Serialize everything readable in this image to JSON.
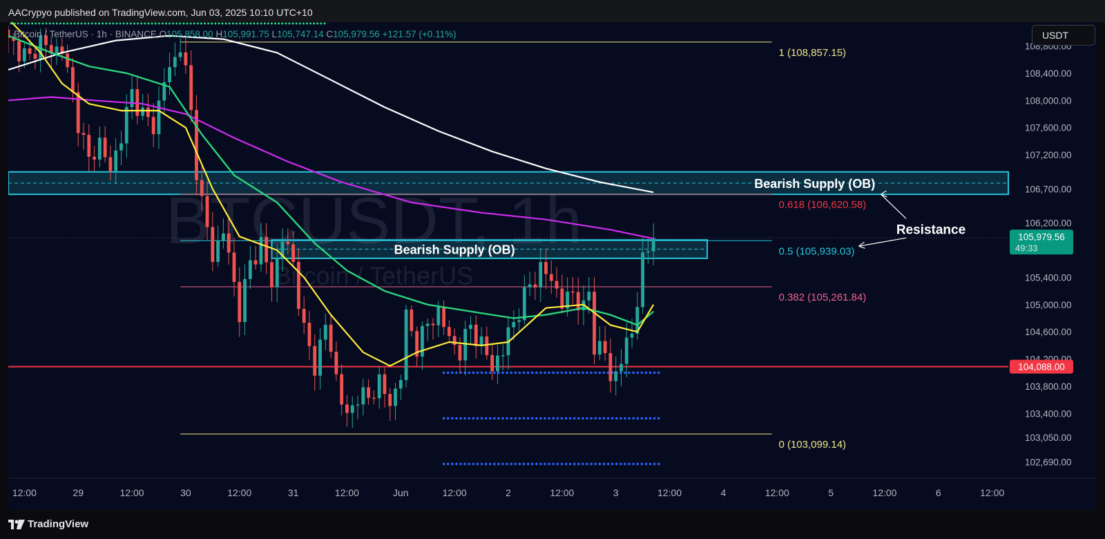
{
  "header": {
    "publisher": "AACrypyo published on TradingView.com, Jun 03, 2025 10:10 UTC+10"
  },
  "legend": {
    "pair": "Bitcoin / TetherUS · 1h · BINANCE",
    "open_label": "O",
    "open": "105,858.00",
    "high_label": "H",
    "high": "105,991.75",
    "low_label": "L",
    "low": "105,747.14",
    "close_label": "C",
    "close": "105,979.56",
    "change": "+121.57 (+0.11%)"
  },
  "currency_button": "USDT",
  "footer": {
    "brand": "TradingView"
  },
  "colors": {
    "background": "#070b1f",
    "up": "#26a69a",
    "down": "#ef5350",
    "ema_yellow": "#ffeb3b",
    "ema_green": "#2bd47d",
    "ema_magenta": "#d12bf0",
    "ema_white": "#ffffff",
    "ob_cyan": "#26c6da",
    "support_red": "#f23645",
    "fib_yellow": "#f0e68c",
    "fib_618": "#f23645",
    "fib_382": "#f06292",
    "dots_blue": "#2962ff"
  },
  "chart_data": {
    "type": "candlestick",
    "symbol": "BTCUSDT, 1h",
    "watermark_symbol": "BTCUSDT, 1h",
    "watermark_name": "Bitcoin / TetherUS",
    "y_axis": {
      "ylim": [
        102450,
        109150
      ],
      "ticks": [
        {
          "v": 108800,
          "label": "108,800.00"
        },
        {
          "v": 108400,
          "label": "108,400.00"
        },
        {
          "v": 108000,
          "label": "108,000.00"
        },
        {
          "v": 107600,
          "label": "107,600.00"
        },
        {
          "v": 107200,
          "label": "107,200.00"
        },
        {
          "v": 106700,
          "label": "106,700.00"
        },
        {
          "v": 106200,
          "label": "106,200.00"
        },
        {
          "v": 105400,
          "label": "105,400.00"
        },
        {
          "v": 105000,
          "label": "105,000.00"
        },
        {
          "v": 104600,
          "label": "104,600.00"
        },
        {
          "v": 104200,
          "label": "104,200.00"
        },
        {
          "v": 103800,
          "label": "103,800.00"
        },
        {
          "v": 103400,
          "label": "103,400.00"
        },
        {
          "v": 103050,
          "label": "103,050.00"
        },
        {
          "v": 102690,
          "label": "102,690.00"
        }
      ]
    },
    "x_axis": {
      "index_range": [
        0,
        186
      ],
      "ticks": [
        {
          "i": 3,
          "label": "12:00"
        },
        {
          "i": 13,
          "label": "29"
        },
        {
          "i": 23,
          "label": "12:00"
        },
        {
          "i": 33,
          "label": "30"
        },
        {
          "i": 43,
          "label": "12:00"
        },
        {
          "i": 53,
          "label": "31"
        },
        {
          "i": 63,
          "label": "12:00"
        },
        {
          "i": 73,
          "label": "Jun"
        },
        {
          "i": 83,
          "label": "12:00"
        },
        {
          "i": 93,
          "label": "2"
        },
        {
          "i": 103,
          "label": "12:00"
        },
        {
          "i": 113,
          "label": "3"
        },
        {
          "i": 123,
          "label": "12:00"
        },
        {
          "i": 133,
          "label": "4"
        },
        {
          "i": 143,
          "label": "12:00"
        },
        {
          "i": 153,
          "label": "5"
        },
        {
          "i": 163,
          "label": "12:00"
        },
        {
          "i": 173,
          "label": "6"
        },
        {
          "i": 183,
          "label": "12:00"
        }
      ]
    },
    "anchors": [
      {
        "i": 0,
        "c": 108850
      },
      {
        "i": 2,
        "c": 108750
      },
      {
        "i": 4,
        "c": 108600
      },
      {
        "i": 6,
        "c": 108900
      },
      {
        "i": 8,
        "c": 108700
      },
      {
        "i": 10,
        "c": 108800
      },
      {
        "i": 11,
        "c": 108400
      },
      {
        "i": 13,
        "c": 107700
      },
      {
        "i": 15,
        "c": 107100
      },
      {
        "i": 17,
        "c": 107400
      },
      {
        "i": 19,
        "c": 106950
      },
      {
        "i": 21,
        "c": 107500
      },
      {
        "i": 23,
        "c": 108100
      },
      {
        "i": 25,
        "c": 107800
      },
      {
        "i": 27,
        "c": 107600
      },
      {
        "i": 29,
        "c": 108300
      },
      {
        "i": 31,
        "c": 108600
      },
      {
        "i": 32,
        "c": 108850
      },
      {
        "i": 33,
        "c": 108400
      },
      {
        "i": 34,
        "c": 107800
      },
      {
        "i": 35,
        "c": 107000
      },
      {
        "i": 36,
        "c": 106500
      },
      {
        "i": 38,
        "c": 105700
      },
      {
        "i": 40,
        "c": 106100
      },
      {
        "i": 42,
        "c": 105300
      },
      {
        "i": 43,
        "c": 104900
      },
      {
        "i": 45,
        "c": 105600
      },
      {
        "i": 47,
        "c": 105900
      },
      {
        "i": 49,
        "c": 105300
      },
      {
        "i": 51,
        "c": 106000
      },
      {
        "i": 53,
        "c": 105600
      },
      {
        "i": 55,
        "c": 104600
      },
      {
        "i": 57,
        "c": 104100
      },
      {
        "i": 59,
        "c": 104700
      },
      {
        "i": 61,
        "c": 103950
      },
      {
        "i": 63,
        "c": 103300
      },
      {
        "i": 65,
        "c": 103700
      },
      {
        "i": 67,
        "c": 103600
      },
      {
        "i": 69,
        "c": 103900
      },
      {
        "i": 71,
        "c": 103500
      },
      {
        "i": 73,
        "c": 104000
      },
      {
        "i": 74,
        "c": 104800
      },
      {
        "i": 76,
        "c": 104400
      },
      {
        "i": 78,
        "c": 104700
      },
      {
        "i": 80,
        "c": 104900
      },
      {
        "i": 82,
        "c": 104500
      },
      {
        "i": 84,
        "c": 104300
      },
      {
        "i": 86,
        "c": 104700
      },
      {
        "i": 88,
        "c": 104400
      },
      {
        "i": 90,
        "c": 104100
      },
      {
        "i": 92,
        "c": 104300
      },
      {
        "i": 93,
        "c": 104600
      },
      {
        "i": 95,
        "c": 104900
      },
      {
        "i": 97,
        "c": 105300
      },
      {
        "i": 99,
        "c": 105500
      },
      {
        "i": 101,
        "c": 105400
      },
      {
        "i": 103,
        "c": 105000
      },
      {
        "i": 105,
        "c": 105200
      },
      {
        "i": 107,
        "c": 104900
      },
      {
        "i": 108,
        "c": 105200
      },
      {
        "i": 109,
        "c": 104400
      },
      {
        "i": 111,
        "c": 104300
      },
      {
        "i": 112,
        "c": 103900
      },
      {
        "i": 113,
        "c": 104000
      },
      {
        "i": 115,
        "c": 104400
      },
      {
        "i": 116,
        "c": 104600
      },
      {
        "i": 117,
        "c": 105100
      },
      {
        "i": 118,
        "c": 105600
      },
      {
        "i": 119,
        "c": 105800
      },
      {
        "i": 120,
        "c": 105980
      }
    ],
    "candle_count": 121,
    "ema_yellow": [
      {
        "i": 0,
        "v": 109200
      },
      {
        "i": 6,
        "v": 108700
      },
      {
        "i": 10,
        "v": 108250
      },
      {
        "i": 15,
        "v": 107950
      },
      {
        "i": 21,
        "v": 107850
      },
      {
        "i": 28,
        "v": 107850
      },
      {
        "i": 33,
        "v": 107600
      },
      {
        "i": 38,
        "v": 106700
      },
      {
        "i": 43,
        "v": 106000
      },
      {
        "i": 50,
        "v": 105800
      },
      {
        "i": 55,
        "v": 105400
      },
      {
        "i": 60,
        "v": 104850
      },
      {
        "i": 66,
        "v": 104300
      },
      {
        "i": 71,
        "v": 104100
      },
      {
        "i": 76,
        "v": 104300
      },
      {
        "i": 82,
        "v": 104450
      },
      {
        "i": 88,
        "v": 104400
      },
      {
        "i": 93,
        "v": 104450
      },
      {
        "i": 100,
        "v": 104950
      },
      {
        "i": 107,
        "v": 105000
      },
      {
        "i": 112,
        "v": 104700
      },
      {
        "i": 117,
        "v": 104600
      },
      {
        "i": 120,
        "v": 105000
      }
    ],
    "ema_green": [
      {
        "i": 0,
        "v": 108950
      },
      {
        "i": 8,
        "v": 108700
      },
      {
        "i": 15,
        "v": 108500
      },
      {
        "i": 22,
        "v": 108400
      },
      {
        "i": 30,
        "v": 108200
      },
      {
        "i": 36,
        "v": 107500
      },
      {
        "i": 42,
        "v": 106900
      },
      {
        "i": 50,
        "v": 106500
      },
      {
        "i": 57,
        "v": 105900
      },
      {
        "i": 63,
        "v": 105500
      },
      {
        "i": 70,
        "v": 105200
      },
      {
        "i": 78,
        "v": 105000
      },
      {
        "i": 86,
        "v": 104900
      },
      {
        "i": 94,
        "v": 104800
      },
      {
        "i": 100,
        "v": 104850
      },
      {
        "i": 107,
        "v": 104950
      },
      {
        "i": 112,
        "v": 104850
      },
      {
        "i": 117,
        "v": 104700
      },
      {
        "i": 120,
        "v": 104900
      }
    ],
    "ema_magenta": [
      {
        "i": 0,
        "v": 108000
      },
      {
        "i": 8,
        "v": 108050
      },
      {
        "i": 16,
        "v": 108000
      },
      {
        "i": 25,
        "v": 107950
      },
      {
        "i": 33,
        "v": 107800
      },
      {
        "i": 42,
        "v": 107450
      },
      {
        "i": 52,
        "v": 107100
      },
      {
        "i": 62,
        "v": 106800
      },
      {
        "i": 75,
        "v": 106500
      },
      {
        "i": 88,
        "v": 106350
      },
      {
        "i": 100,
        "v": 106250
      },
      {
        "i": 112,
        "v": 106100
      },
      {
        "i": 120,
        "v": 105970
      }
    ],
    "ema_white": [
      {
        "i": 0,
        "v": 108450
      },
      {
        "i": 10,
        "v": 108700
      },
      {
        "i": 20,
        "v": 108880
      },
      {
        "i": 30,
        "v": 108950
      },
      {
        "i": 40,
        "v": 108900
      },
      {
        "i": 50,
        "v": 108700
      },
      {
        "i": 60,
        "v": 108300
      },
      {
        "i": 70,
        "v": 107900
      },
      {
        "i": 80,
        "v": 107550
      },
      {
        "i": 90,
        "v": 107250
      },
      {
        "i": 100,
        "v": 107000
      },
      {
        "i": 110,
        "v": 106800
      },
      {
        "i": 120,
        "v": 106650
      }
    ],
    "fib_levels": [
      {
        "label": "1 (108,857.15)",
        "value": 108857.15,
        "color": "#f0e68c"
      },
      {
        "label": "0.618 (106,620.58)",
        "value": 106620.58,
        "color": "#f23645"
      },
      {
        "label": "0.5 (105,939.03)",
        "value": 105939.03,
        "color": "#26c6da"
      },
      {
        "label": "0.382 (105,261.84)",
        "value": 105261.84,
        "color": "#f06292"
      },
      {
        "label": "0 (103,099.14)",
        "value": 103099.14,
        "color": "#f0e68c"
      }
    ],
    "fib_x_range": [
      32,
      142
    ],
    "support_line": {
      "value": 104088,
      "label": "104,088.00"
    },
    "last_price": {
      "value": 105979.56,
      "label": "105,979.56",
      "countdown": "49:33"
    },
    "ob_zones": [
      {
        "label": "Bearish Supply (OB)",
        "top": 106950,
        "bottom": 106620,
        "mid": 106785,
        "x_from": 0,
        "x_to": 186
      },
      {
        "label": "Bearish Supply (OB)",
        "top": 105950,
        "bottom": 105680,
        "mid": 105815,
        "x_from": 49,
        "x_to": 130
      }
    ],
    "dotted_levels": [
      {
        "value": 104000,
        "x_from": 81,
        "x_to": 121
      },
      {
        "value": 103330,
        "x_from": 81,
        "x_to": 121
      },
      {
        "value": 102660,
        "x_from": 81,
        "x_to": 121
      }
    ],
    "annotations": [
      {
        "text": "Resistance"
      }
    ]
  }
}
